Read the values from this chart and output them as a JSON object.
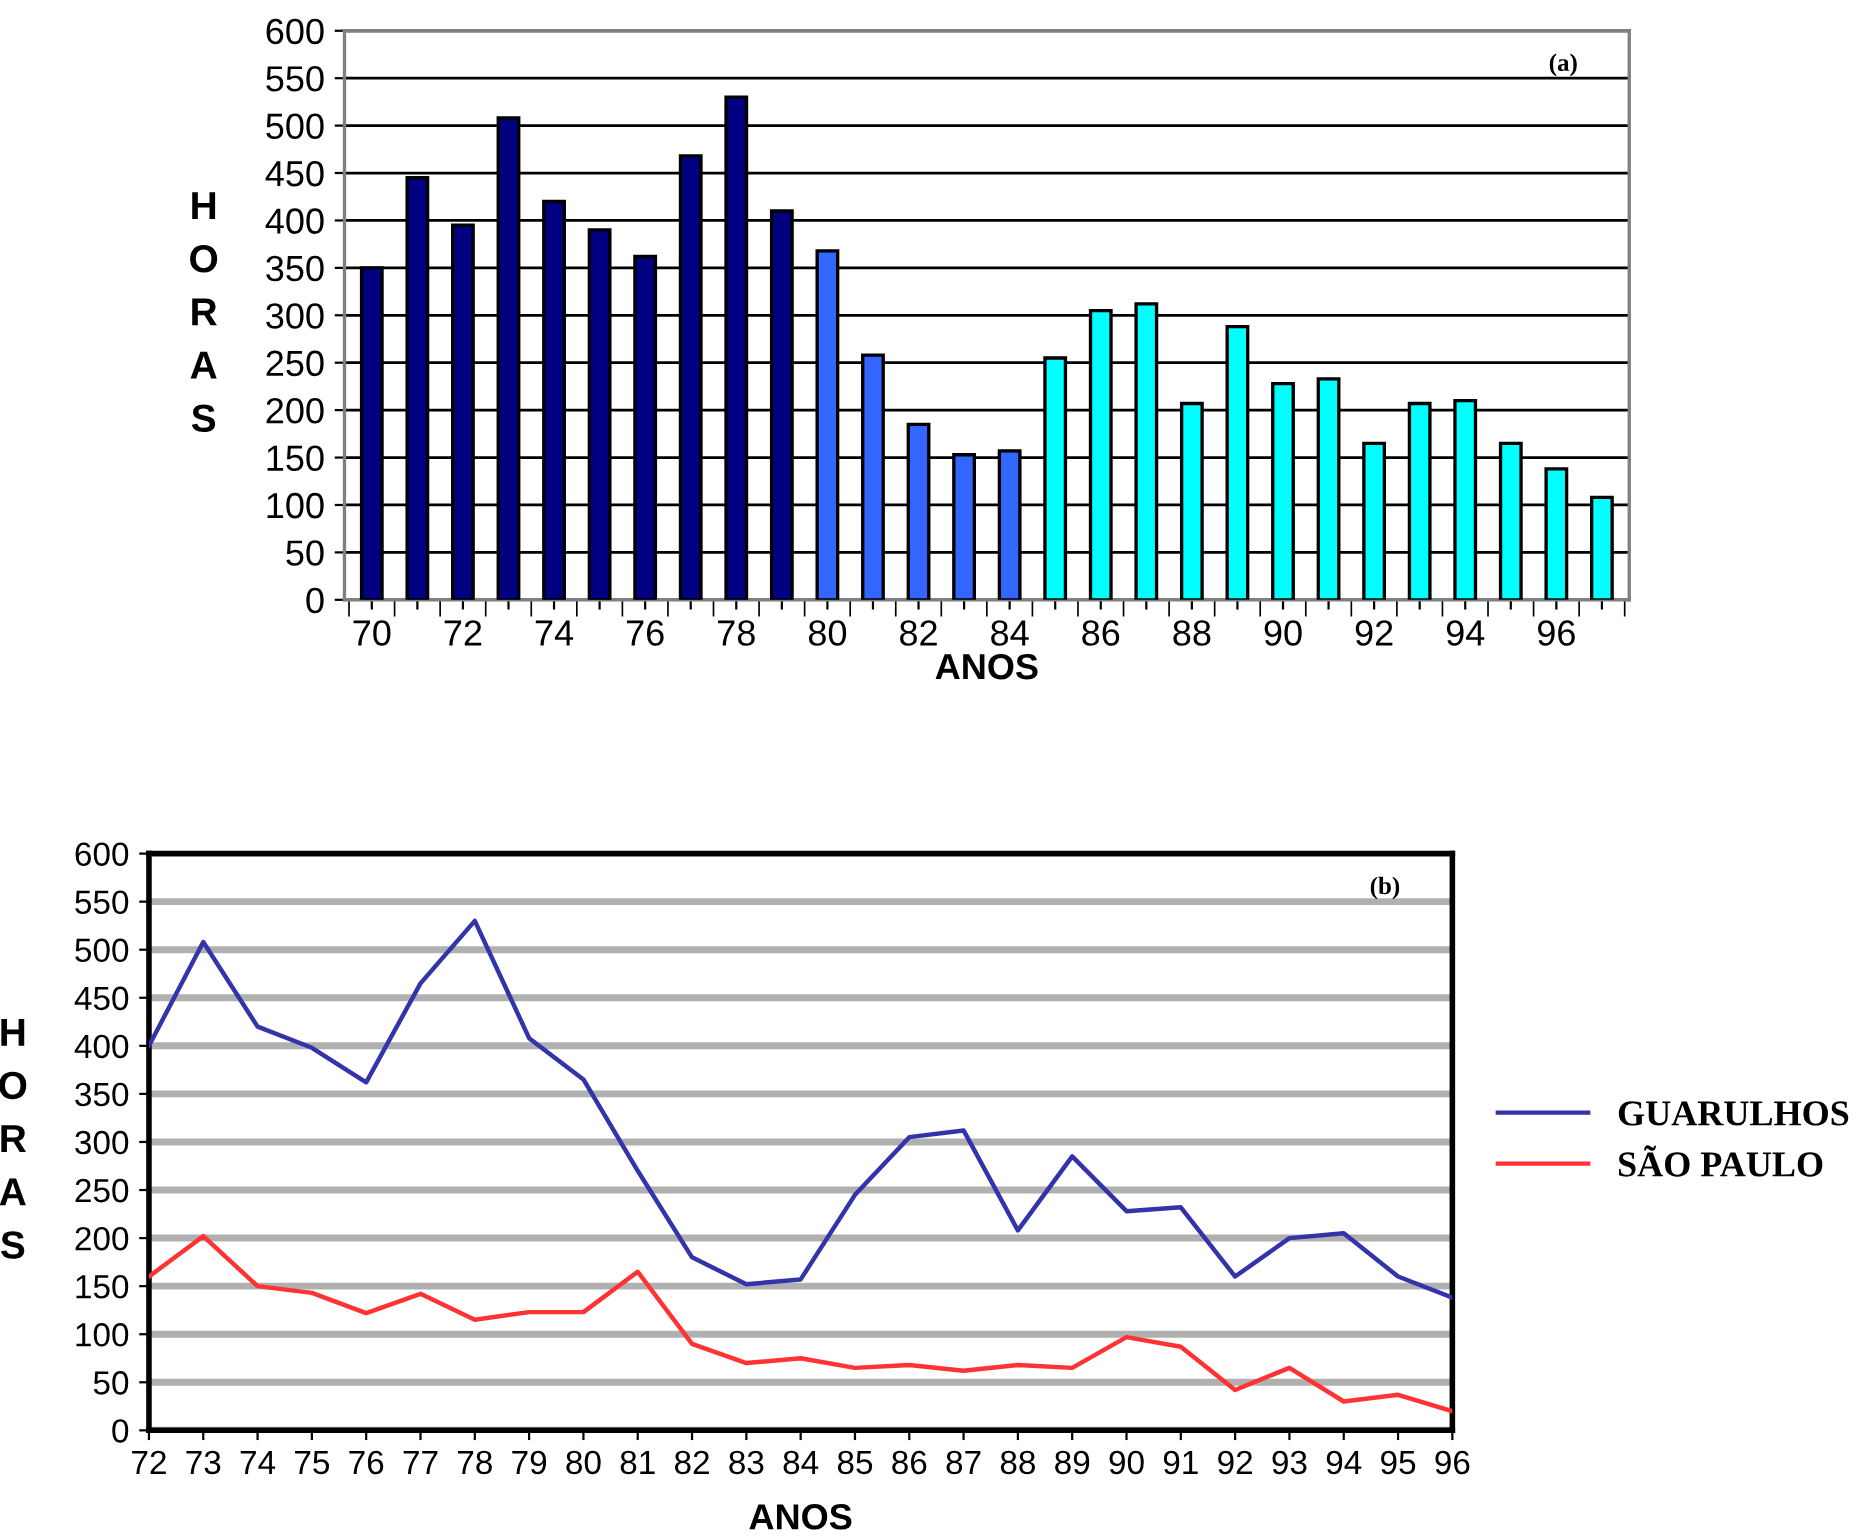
{
  "chart_data": [
    {
      "type": "bar",
      "annotations": [
        "(a)"
      ],
      "xlabel": "ANOS",
      "ylabel": "HORAS",
      "categories": [
        "70",
        null,
        "72",
        null,
        "74",
        null,
        "76",
        null,
        "78",
        null,
        "80",
        null,
        "82",
        null,
        "84",
        null,
        "86",
        null,
        "88",
        null,
        "90",
        null,
        "92",
        null,
        "94",
        null,
        "96",
        null
      ],
      "values": [
        350,
        445,
        395,
        508,
        420,
        390,
        362,
        468,
        530,
        410,
        368,
        258,
        185,
        153,
        157,
        255,
        305,
        312,
        207,
        288,
        228,
        233,
        165,
        207,
        210,
        165,
        138,
        108
      ],
      "colors": [
        "#000080",
        "#000080",
        "#000080",
        "#000080",
        "#000080",
        "#000080",
        "#000080",
        "#000080",
        "#000080",
        "#000080",
        "#3366ff",
        "#3366ff",
        "#3366ff",
        "#3366ff",
        "#3366ff",
        "#00ffff",
        "#00ffff",
        "#00ffff",
        "#00ffff",
        "#00ffff",
        "#00ffff",
        "#00ffff",
        "#00ffff",
        "#00ffff",
        "#00ffff",
        "#00ffff",
        "#00ffff",
        "#00ffff"
      ],
      "ylim": [
        0,
        600
      ],
      "yticks": [
        0,
        50,
        100,
        150,
        200,
        250,
        300,
        350,
        400,
        450,
        500,
        550,
        600
      ],
      "grid": "y"
    },
    {
      "type": "line",
      "annotations": [
        "(b)"
      ],
      "xlabel": "ANOS",
      "ylabel": "HORAS",
      "categories": [
        "72",
        "73",
        "74",
        "75",
        "76",
        "77",
        "78",
        "79",
        "80",
        "81",
        "82",
        "83",
        "84",
        "85",
        "86",
        "87",
        "88",
        "89",
        "90",
        "91",
        "92",
        "93",
        "94",
        "95",
        "96"
      ],
      "series": [
        {
          "name": "GUARULHOS",
          "color": "#3333aa",
          "values": [
            400,
            508,
            420,
            398,
            362,
            465,
            530,
            408,
            365,
            270,
            180,
            152,
            157,
            245,
            305,
            312,
            208,
            285,
            228,
            232,
            160,
            200,
            205,
            160,
            138
          ]
        },
        {
          "name": "SÃO PAULO",
          "color": "#ff3333",
          "values": [
            160,
            202,
            150,
            143,
            122,
            142,
            115,
            123,
            123,
            165,
            90,
            70,
            75,
            65,
            68,
            62,
            68,
            65,
            97,
            87,
            42,
            65,
            30,
            37,
            20
          ]
        }
      ],
      "ylim": [
        0,
        600
      ],
      "yticks": [
        0,
        50,
        100,
        150,
        200,
        250,
        300,
        350,
        400,
        450,
        500,
        550,
        600
      ],
      "grid": "y",
      "legend": "right",
      "marker": "none",
      "line_style": "solid"
    }
  ]
}
